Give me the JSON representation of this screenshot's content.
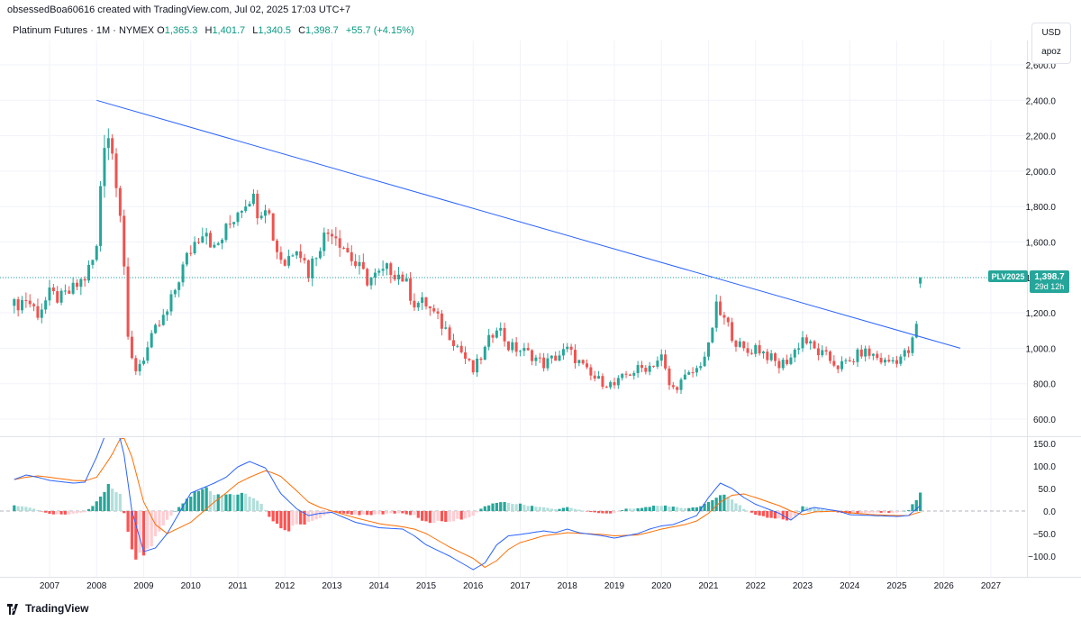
{
  "attribution": "obsessedBoa60616 created with TradingView.com, Jul 02, 2025 17:03 UTC+7",
  "legend": {
    "symbol": "Platinum Futures · 1M · NYMEX",
    "o_label": "O",
    "o_value": "1,365.3",
    "h_label": "H",
    "h_value": "1,401.7",
    "l_label": "L",
    "l_value": "1,340.5",
    "c_label": "C",
    "c_value": "1,398.7",
    "change": "+55.7 (+4.15%)"
  },
  "currency_box": {
    "currency": "USD",
    "sublabel": "apoz"
  },
  "price_badge": {
    "ticker": "PLV2025",
    "price": "1,398.7",
    "countdown": "29d 12h"
  },
  "footer": {
    "brand": "TradingView"
  },
  "colors": {
    "up": "#26a69a",
    "down": "#ef5350",
    "trendline": "#2962ff",
    "macd_line": "#2962ff",
    "signal_line": "#ff6d00",
    "hist_up_strong": "#26a69a",
    "hist_up_weak": "#b2dfdb",
    "hist_down_strong": "#ff5252",
    "hist_down_weak": "#ffcdd2",
    "price_line": "#26a69a",
    "grid": "#f0f3fa"
  },
  "chart_data": [
    {
      "type": "candlestick",
      "title": "Platinum Futures · 1M · NYMEX",
      "x_ticks": [
        "2007",
        "2008",
        "2009",
        "2010",
        "2011",
        "2012",
        "2013",
        "2014",
        "2015",
        "2016",
        "2017",
        "2018",
        "2019",
        "2020",
        "2021",
        "2022",
        "2023",
        "2024",
        "2025",
        "2026",
        "2027"
      ],
      "y_ticks": [
        "600.0",
        "800.0",
        "1,000.0",
        "1,200.0",
        "1,400.0",
        "1,600.0",
        "1,800.0",
        "2,000.0",
        "2,200.0",
        "2,400.0",
        "2,600.0"
      ],
      "ylim": [
        530,
        2600
      ],
      "xlim": [
        2006.25,
        2027.75
      ],
      "last_price": 1398.7,
      "anchors": [
        [
          2006.25,
          1240
        ],
        [
          2006.5,
          1280
        ],
        [
          2006.75,
          1200
        ],
        [
          2007.0,
          1300
        ],
        [
          2007.25,
          1280
        ],
        [
          2007.5,
          1330
        ],
        [
          2007.75,
          1400
        ],
        [
          2007.9,
          1480
        ],
        [
          2008.0,
          1560
        ],
        [
          2008.1,
          2000
        ],
        [
          2008.2,
          2280
        ],
        [
          2008.4,
          2010
        ],
        [
          2008.55,
          1680
        ],
        [
          2008.65,
          1050
        ],
        [
          2008.8,
          870
        ],
        [
          2009.0,
          950
        ],
        [
          2009.25,
          1100
        ],
        [
          2009.5,
          1200
        ],
        [
          2009.75,
          1400
        ],
        [
          2010.0,
          1560
        ],
        [
          2010.3,
          1700
        ],
        [
          2010.5,
          1550
        ],
        [
          2010.75,
          1660
        ],
        [
          2011.0,
          1790
        ],
        [
          2011.25,
          1870
        ],
        [
          2011.45,
          1780
        ],
        [
          2011.6,
          1840
        ],
        [
          2011.8,
          1570
        ],
        [
          2012.0,
          1480
        ],
        [
          2012.25,
          1600
        ],
        [
          2012.5,
          1430
        ],
        [
          2012.75,
          1600
        ],
        [
          2013.0,
          1680
        ],
        [
          2013.25,
          1580
        ],
        [
          2013.5,
          1470
        ],
        [
          2013.75,
          1390
        ],
        [
          2014.0,
          1410
        ],
        [
          2014.25,
          1450
        ],
        [
          2014.5,
          1400
        ],
        [
          2014.75,
          1260
        ],
        [
          2015.0,
          1250
        ],
        [
          2015.25,
          1160
        ],
        [
          2015.5,
          1080
        ],
        [
          2015.75,
          980
        ],
        [
          2016.0,
          870
        ],
        [
          2016.25,
          990
        ],
        [
          2016.5,
          1140
        ],
        [
          2016.75,
          1010
        ],
        [
          2017.0,
          990
        ],
        [
          2017.25,
          960
        ],
        [
          2017.5,
          910
        ],
        [
          2017.75,
          950
        ],
        [
          2018.0,
          990
        ],
        [
          2018.25,
          920
        ],
        [
          2018.5,
          840
        ],
        [
          2018.75,
          810
        ],
        [
          2019.0,
          790
        ],
        [
          2019.25,
          850
        ],
        [
          2019.5,
          880
        ],
        [
          2019.75,
          900
        ],
        [
          2020.0,
          950
        ],
        [
          2020.2,
          760
        ],
        [
          2020.5,
          830
        ],
        [
          2020.75,
          880
        ],
        [
          2021.0,
          1000
        ],
        [
          2021.15,
          1230
        ],
        [
          2021.4,
          1130
        ],
        [
          2021.6,
          1030
        ],
        [
          2021.8,
          970
        ],
        [
          2022.0,
          1010
        ],
        [
          2022.25,
          960
        ],
        [
          2022.5,
          900
        ],
        [
          2022.75,
          950
        ],
        [
          2023.0,
          1060
        ],
        [
          2023.25,
          990
        ],
        [
          2023.5,
          950
        ],
        [
          2023.75,
          900
        ],
        [
          2024.0,
          920
        ],
        [
          2024.25,
          980
        ],
        [
          2024.5,
          960
        ],
        [
          2024.75,
          920
        ],
        [
          2025.0,
          940
        ],
        [
          2025.25,
          980
        ],
        [
          2025.4,
          1080
        ],
        [
          2025.5,
          1398
        ]
      ],
      "trendline": [
        [
          2008.0,
          2400
        ],
        [
          2026.35,
          1000
        ]
      ]
    },
    {
      "type": "macd",
      "y_ticks": [
        "150.0",
        "100.0",
        "50.0",
        "0.0",
        "−50.0",
        "−100.0"
      ],
      "ylim": [
        -137,
        152
      ],
      "macd": [
        [
          2006.25,
          70
        ],
        [
          2006.5,
          80
        ],
        [
          2006.75,
          75
        ],
        [
          2007.0,
          68
        ],
        [
          2007.5,
          62
        ],
        [
          2007.75,
          64
        ],
        [
          2008.0,
          120
        ],
        [
          2008.3,
          200
        ],
        [
          2008.55,
          150
        ],
        [
          2008.75,
          0
        ],
        [
          2009.0,
          -90
        ],
        [
          2009.25,
          -82
        ],
        [
          2009.5,
          -50
        ],
        [
          2009.75,
          -5
        ],
        [
          2010.0,
          40
        ],
        [
          2010.5,
          62
        ],
        [
          2010.75,
          75
        ],
        [
          2011.0,
          98
        ],
        [
          2011.25,
          110
        ],
        [
          2011.6,
          95
        ],
        [
          2011.9,
          40
        ],
        [
          2012.25,
          5
        ],
        [
          2012.5,
          -10
        ],
        [
          2012.75,
          -5
        ],
        [
          2013.0,
          -3
        ],
        [
          2013.5,
          -25
        ],
        [
          2014.0,
          -37
        ],
        [
          2014.5,
          -40
        ],
        [
          2014.75,
          -55
        ],
        [
          2015.0,
          -75
        ],
        [
          2015.5,
          -100
        ],
        [
          2016.0,
          -130
        ],
        [
          2016.25,
          -115
        ],
        [
          2016.5,
          -75
        ],
        [
          2016.75,
          -55
        ],
        [
          2017.0,
          -52
        ],
        [
          2017.5,
          -44
        ],
        [
          2017.75,
          -48
        ],
        [
          2018.0,
          -40
        ],
        [
          2018.25,
          -48
        ],
        [
          2018.75,
          -55
        ],
        [
          2019.0,
          -60
        ],
        [
          2019.5,
          -50
        ],
        [
          2019.75,
          -40
        ],
        [
          2020.0,
          -33
        ],
        [
          2020.25,
          -30
        ],
        [
          2020.5,
          -20
        ],
        [
          2020.75,
          -10
        ],
        [
          2021.0,
          30
        ],
        [
          2021.25,
          62
        ],
        [
          2021.5,
          50
        ],
        [
          2021.75,
          30
        ],
        [
          2022.0,
          15
        ],
        [
          2022.5,
          -5
        ],
        [
          2022.75,
          -20
        ],
        [
          2023.0,
          0
        ],
        [
          2023.25,
          8
        ],
        [
          2023.75,
          0
        ],
        [
          2024.0,
          -8
        ],
        [
          2024.5,
          -10
        ],
        [
          2025.0,
          -12
        ],
        [
          2025.25,
          -10
        ],
        [
          2025.5,
          12
        ]
      ],
      "signal": [
        [
          2006.25,
          70
        ],
        [
          2006.5,
          75
        ],
        [
          2006.75,
          78
        ],
        [
          2007.0,
          75
        ],
        [
          2007.5,
          68
        ],
        [
          2007.75,
          67
        ],
        [
          2008.0,
          75
        ],
        [
          2008.3,
          120
        ],
        [
          2008.55,
          170
        ],
        [
          2008.75,
          120
        ],
        [
          2009.0,
          20
        ],
        [
          2009.25,
          -30
        ],
        [
          2009.5,
          -50
        ],
        [
          2010.0,
          -25
        ],
        [
          2010.5,
          20
        ],
        [
          2010.75,
          40
        ],
        [
          2011.0,
          62
        ],
        [
          2011.25,
          75
        ],
        [
          2011.6,
          90
        ],
        [
          2011.9,
          78
        ],
        [
          2012.25,
          45
        ],
        [
          2012.5,
          20
        ],
        [
          2012.75,
          8
        ],
        [
          2013.0,
          0
        ],
        [
          2013.5,
          -15
        ],
        [
          2014.0,
          -28
        ],
        [
          2014.5,
          -35
        ],
        [
          2014.75,
          -40
        ],
        [
          2015.0,
          -50
        ],
        [
          2015.5,
          -80
        ],
        [
          2016.0,
          -105
        ],
        [
          2016.25,
          -125
        ],
        [
          2016.5,
          -110
        ],
        [
          2016.75,
          -85
        ],
        [
          2017.0,
          -70
        ],
        [
          2017.5,
          -55
        ],
        [
          2018.0,
          -48
        ],
        [
          2018.75,
          -52
        ],
        [
          2019.0,
          -55
        ],
        [
          2019.5,
          -53
        ],
        [
          2019.75,
          -47
        ],
        [
          2020.0,
          -40
        ],
        [
          2020.5,
          -30
        ],
        [
          2020.75,
          -22
        ],
        [
          2021.0,
          -5
        ],
        [
          2021.25,
          20
        ],
        [
          2021.5,
          35
        ],
        [
          2021.75,
          38
        ],
        [
          2022.0,
          30
        ],
        [
          2022.5,
          12
        ],
        [
          2022.75,
          0
        ],
        [
          2023.0,
          -8
        ],
        [
          2023.25,
          -2
        ],
        [
          2023.75,
          0
        ],
        [
          2024.0,
          -4
        ],
        [
          2024.5,
          -8
        ],
        [
          2025.0,
          -10
        ],
        [
          2025.25,
          -10
        ],
        [
          2025.5,
          -2
        ]
      ],
      "histogram": [
        [
          2006.25,
          12
        ],
        [
          2006.5,
          10
        ],
        [
          2006.75,
          2
        ],
        [
          2007.0,
          -6
        ],
        [
          2007.25,
          -8
        ],
        [
          2007.5,
          -6
        ],
        [
          2007.75,
          -3
        ],
        [
          2008.0,
          20
        ],
        [
          2008.25,
          55
        ],
        [
          2008.5,
          40
        ],
        [
          2008.75,
          -95
        ],
        [
          2009.0,
          -110
        ],
        [
          2009.25,
          -60
        ],
        [
          2009.5,
          -20
        ],
        [
          2009.75,
          10
        ],
        [
          2010.0,
          35
        ],
        [
          2010.25,
          55
        ],
        [
          2010.5,
          40
        ],
        [
          2010.75,
          38
        ],
        [
          2011.0,
          37
        ],
        [
          2011.25,
          35
        ],
        [
          2011.5,
          15
        ],
        [
          2011.75,
          -25
        ],
        [
          2012.0,
          -45
        ],
        [
          2012.25,
          -32
        ],
        [
          2012.5,
          -25
        ],
        [
          2012.75,
          -14
        ],
        [
          2013.0,
          -3
        ],
        [
          2013.5,
          -8
        ],
        [
          2014.0,
          -8
        ],
        [
          2014.25,
          -5
        ],
        [
          2014.5,
          -5
        ],
        [
          2014.75,
          -10
        ],
        [
          2015.0,
          -25
        ],
        [
          2015.5,
          -22
        ],
        [
          2015.75,
          -18
        ],
        [
          2016.0,
          -10
        ],
        [
          2016.25,
          12
        ],
        [
          2016.5,
          18
        ],
        [
          2016.75,
          18
        ],
        [
          2017.0,
          15
        ],
        [
          2017.5,
          8
        ],
        [
          2017.75,
          4
        ],
        [
          2018.0,
          8
        ],
        [
          2018.5,
          -2
        ],
        [
          2018.75,
          -5
        ],
        [
          2019.0,
          -5
        ],
        [
          2019.25,
          5
        ],
        [
          2019.5,
          6
        ],
        [
          2019.75,
          10
        ],
        [
          2020.0,
          12
        ],
        [
          2020.25,
          10
        ],
        [
          2020.5,
          6
        ],
        [
          2020.75,
          8
        ],
        [
          2021.0,
          18
        ],
        [
          2021.25,
          38
        ],
        [
          2021.5,
          25
        ],
        [
          2021.75,
          5
        ],
        [
          2022.0,
          -8
        ],
        [
          2022.25,
          -14
        ],
        [
          2022.5,
          -18
        ],
        [
          2022.75,
          -20
        ],
        [
          2023.0,
          10
        ],
        [
          2023.25,
          8
        ],
        [
          2023.5,
          2
        ],
        [
          2023.75,
          -3
        ],
        [
          2024.0,
          -6
        ],
        [
          2024.5,
          -3
        ],
        [
          2024.75,
          -4
        ],
        [
          2025.0,
          -3
        ],
        [
          2025.25,
          2
        ],
        [
          2025.4,
          25
        ],
        [
          2025.5,
          40
        ]
      ]
    }
  ]
}
